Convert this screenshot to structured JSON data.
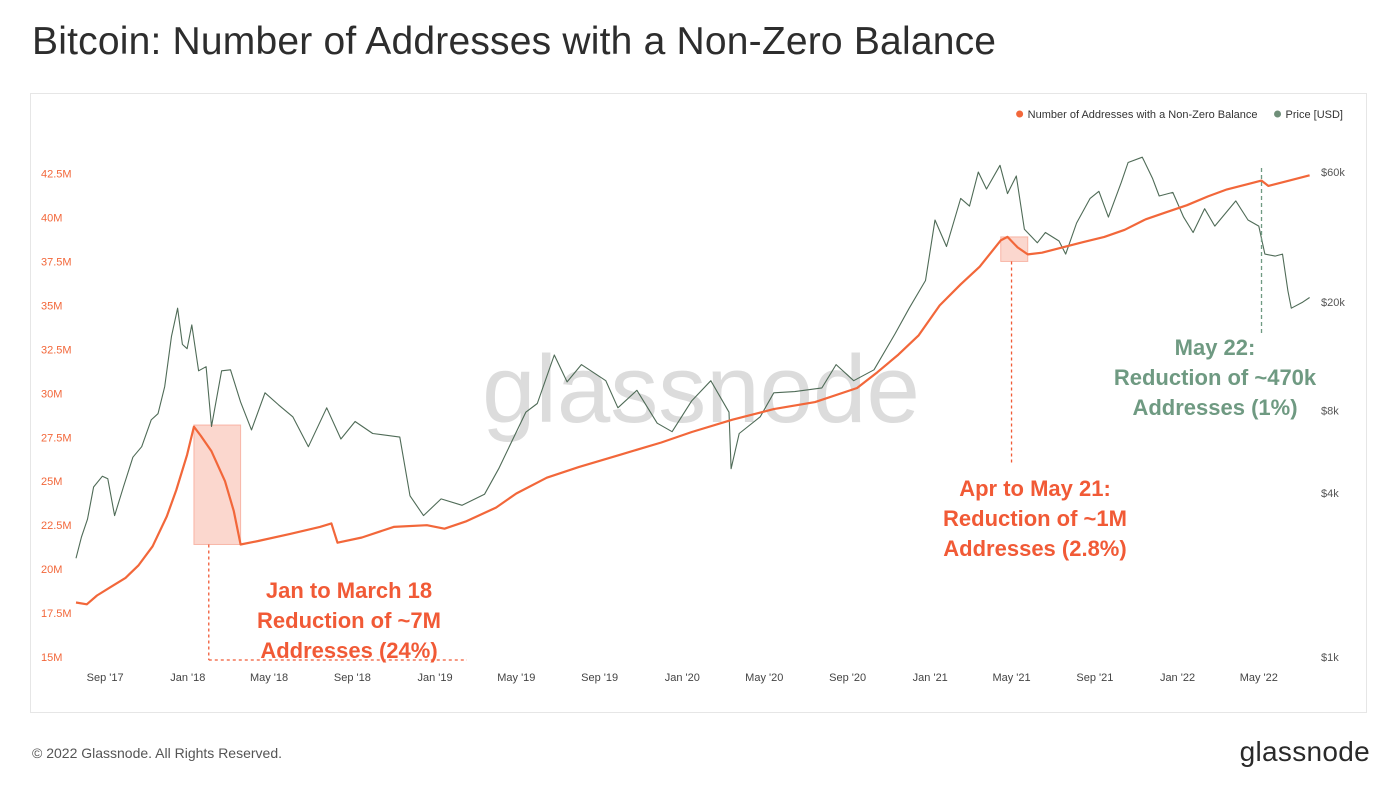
{
  "title": "Bitcoin: Number of Addresses with a Non-Zero Balance",
  "footer": {
    "copyright": "© 2022 Glassnode. All Rights Reserved.",
    "logo_text": "glassnode"
  },
  "watermark": "glassnode",
  "colors": {
    "addresses": "#f2673a",
    "price": "#4f6b57",
    "annotation_red": "#f15a36",
    "annotation_green": "#6f9a82",
    "highlight_fill": "#f9c9bd",
    "left_axis_text": "#f2673a",
    "right_axis_text": "#555555",
    "watermark": "#dcdcdc"
  },
  "chart_data": {
    "type": "line",
    "legend": {
      "placement": "top-right",
      "items": [
        {
          "label": "Number of Addresses with a Non-Zero Balance",
          "color": "#f2673a"
        },
        {
          "label": "Price [USD]",
          "color": "#6f8f79"
        }
      ]
    },
    "x_ticks": [
      "Sep '17",
      "Jan '18",
      "May '18",
      "Sep '18",
      "Jan '19",
      "May '19",
      "Sep '19",
      "Jan '20",
      "May '20",
      "Sep '20",
      "Jan '21",
      "May '21",
      "Sep '21",
      "Jan '22",
      "May '22"
    ],
    "x_range": [
      "2017-07-20",
      "2022-07-20"
    ],
    "y_left": {
      "ticks": [
        "15M",
        "17.5M",
        "20M",
        "22.5M",
        "25M",
        "27.5M",
        "30M",
        "32.5M",
        "35M",
        "37.5M",
        "40M",
        "42.5M"
      ],
      "range": [
        15,
        43.5
      ],
      "unit": "millions"
    },
    "y_right": {
      "ticks": [
        "$1k",
        "$4k",
        "$8k",
        "$20k",
        "$60k"
      ],
      "tick_values": [
        1000,
        4000,
        8000,
        20000,
        60000
      ],
      "scale": "log"
    },
    "series": [
      {
        "name": "Number of Addresses with a Non-Zero Balance",
        "axis": "left",
        "points": [
          [
            "2017-07-20",
            18.1
          ],
          [
            "2017-08-05",
            18.0
          ],
          [
            "2017-08-20",
            18.5
          ],
          [
            "2017-09-10",
            19.0
          ],
          [
            "2017-10-01",
            19.5
          ],
          [
            "2017-10-20",
            20.2
          ],
          [
            "2017-11-10",
            21.3
          ],
          [
            "2017-12-01",
            23.0
          ],
          [
            "2017-12-15",
            24.5
          ],
          [
            "2017-12-31",
            26.5
          ],
          [
            "2018-01-10",
            28.1
          ],
          [
            "2018-01-20",
            27.6
          ],
          [
            "2018-02-05",
            26.7
          ],
          [
            "2018-02-25",
            25.0
          ],
          [
            "2018-03-10",
            23.3
          ],
          [
            "2018-03-20",
            21.4
          ],
          [
            "2018-04-15",
            21.6
          ],
          [
            "2018-06-01",
            22.0
          ],
          [
            "2018-07-15",
            22.4
          ],
          [
            "2018-08-01",
            22.6
          ],
          [
            "2018-08-10",
            21.5
          ],
          [
            "2018-09-15",
            21.8
          ],
          [
            "2018-11-01",
            22.4
          ],
          [
            "2018-12-20",
            22.5
          ],
          [
            "2019-01-15",
            22.3
          ],
          [
            "2019-02-15",
            22.7
          ],
          [
            "2019-04-01",
            23.5
          ],
          [
            "2019-05-01",
            24.3
          ],
          [
            "2019-06-15",
            25.2
          ],
          [
            "2019-08-01",
            25.8
          ],
          [
            "2019-10-01",
            26.5
          ],
          [
            "2019-12-01",
            27.2
          ],
          [
            "2020-01-15",
            27.8
          ],
          [
            "2020-03-15",
            28.5
          ],
          [
            "2020-05-15",
            29.1
          ],
          [
            "2020-07-15",
            29.5
          ],
          [
            "2020-09-15",
            30.3
          ],
          [
            "2020-10-15",
            31.2
          ],
          [
            "2020-11-15",
            32.2
          ],
          [
            "2020-12-15",
            33.3
          ],
          [
            "2021-01-15",
            35.0
          ],
          [
            "2021-02-15",
            36.2
          ],
          [
            "2021-03-15",
            37.2
          ],
          [
            "2021-04-15",
            38.7
          ],
          [
            "2021-04-25",
            38.9
          ],
          [
            "2021-05-10",
            38.3
          ],
          [
            "2021-05-25",
            37.9
          ],
          [
            "2021-06-15",
            38.0
          ],
          [
            "2021-07-15",
            38.3
          ],
          [
            "2021-08-15",
            38.6
          ],
          [
            "2021-09-15",
            38.9
          ],
          [
            "2021-10-15",
            39.3
          ],
          [
            "2021-11-15",
            39.9
          ],
          [
            "2021-12-15",
            40.3
          ],
          [
            "2022-01-15",
            40.7
          ],
          [
            "2022-02-15",
            41.2
          ],
          [
            "2022-03-15",
            41.6
          ],
          [
            "2022-04-15",
            41.9
          ],
          [
            "2022-05-05",
            42.1
          ],
          [
            "2022-05-15",
            41.8
          ],
          [
            "2022-06-15",
            42.1
          ],
          [
            "2022-07-15",
            42.4
          ]
        ]
      },
      {
        "name": "Price [USD]",
        "axis": "right",
        "points": [
          [
            "2017-07-20",
            2300
          ],
          [
            "2017-07-28",
            2750
          ],
          [
            "2017-08-06",
            3200
          ],
          [
            "2017-08-15",
            4200
          ],
          [
            "2017-08-28",
            4600
          ],
          [
            "2017-09-05",
            4500
          ],
          [
            "2017-09-15",
            3300
          ],
          [
            "2017-09-28",
            4200
          ],
          [
            "2017-10-12",
            5400
          ],
          [
            "2017-10-25",
            5900
          ],
          [
            "2017-11-08",
            7400
          ],
          [
            "2017-11-18",
            7800
          ],
          [
            "2017-11-28",
            9800
          ],
          [
            "2017-12-08",
            15000
          ],
          [
            "2017-12-17",
            19000
          ],
          [
            "2017-12-24",
            14000
          ],
          [
            "2017-12-31",
            13500
          ],
          [
            "2018-01-07",
            16500
          ],
          [
            "2018-01-17",
            11200
          ],
          [
            "2018-01-28",
            11600
          ],
          [
            "2018-02-05",
            7000
          ],
          [
            "2018-02-20",
            11200
          ],
          [
            "2018-03-05",
            11300
          ],
          [
            "2018-03-20",
            8600
          ],
          [
            "2018-04-05",
            6800
          ],
          [
            "2018-04-25",
            9300
          ],
          [
            "2018-05-15",
            8400
          ],
          [
            "2018-06-05",
            7600
          ],
          [
            "2018-06-28",
            5900
          ],
          [
            "2018-07-25",
            8200
          ],
          [
            "2018-08-15",
            6300
          ],
          [
            "2018-09-05",
            7300
          ],
          [
            "2018-10-01",
            6600
          ],
          [
            "2018-11-10",
            6400
          ],
          [
            "2018-11-25",
            3900
          ],
          [
            "2018-12-15",
            3300
          ],
          [
            "2019-01-10",
            3800
          ],
          [
            "2019-02-10",
            3600
          ],
          [
            "2019-03-15",
            3950
          ],
          [
            "2019-04-05",
            4900
          ],
          [
            "2019-05-15",
            7900
          ],
          [
            "2019-06-01",
            8500
          ],
          [
            "2019-06-26",
            12800
          ],
          [
            "2019-07-15",
            10200
          ],
          [
            "2019-08-05",
            11800
          ],
          [
            "2019-09-10",
            10300
          ],
          [
            "2019-09-28",
            8200
          ],
          [
            "2019-10-26",
            9500
          ],
          [
            "2019-11-25",
            7200
          ],
          [
            "2019-12-17",
            6700
          ],
          [
            "2020-01-15",
            8700
          ],
          [
            "2020-02-12",
            10300
          ],
          [
            "2020-03-10",
            7900
          ],
          [
            "2020-03-13",
            4900
          ],
          [
            "2020-03-25",
            6600
          ],
          [
            "2020-04-25",
            7600
          ],
          [
            "2020-05-15",
            9300
          ],
          [
            "2020-06-15",
            9400
          ],
          [
            "2020-07-25",
            9700
          ],
          [
            "2020-08-15",
            11800
          ],
          [
            "2020-09-10",
            10300
          ],
          [
            "2020-10-10",
            11300
          ],
          [
            "2020-11-10",
            15300
          ],
          [
            "2020-12-01",
            19000
          ],
          [
            "2020-12-25",
            24000
          ],
          [
            "2021-01-08",
            40000
          ],
          [
            "2021-01-25",
            32000
          ],
          [
            "2021-02-15",
            48000
          ],
          [
            "2021-02-28",
            45000
          ],
          [
            "2021-03-13",
            60000
          ],
          [
            "2021-03-25",
            52000
          ],
          [
            "2021-04-14",
            63500
          ],
          [
            "2021-04-25",
            50000
          ],
          [
            "2021-05-08",
            58000
          ],
          [
            "2021-05-20",
            37000
          ],
          [
            "2021-06-08",
            33000
          ],
          [
            "2021-06-20",
            36000
          ],
          [
            "2021-07-10",
            33500
          ],
          [
            "2021-07-20",
            30000
          ],
          [
            "2021-08-05",
            39000
          ],
          [
            "2021-08-25",
            48000
          ],
          [
            "2021-09-07",
            51000
          ],
          [
            "2021-09-21",
            41000
          ],
          [
            "2021-10-10",
            55000
          ],
          [
            "2021-10-20",
            65000
          ],
          [
            "2021-11-10",
            68000
          ],
          [
            "2021-11-25",
            57000
          ],
          [
            "2021-12-05",
            49000
          ],
          [
            "2021-12-25",
            50500
          ],
          [
            "2022-01-10",
            41000
          ],
          [
            "2022-01-24",
            36000
          ],
          [
            "2022-02-10",
            44000
          ],
          [
            "2022-02-25",
            38000
          ],
          [
            "2022-03-28",
            47000
          ],
          [
            "2022-04-15",
            40000
          ],
          [
            "2022-05-01",
            38000
          ],
          [
            "2022-05-10",
            30000
          ],
          [
            "2022-05-25",
            29500
          ],
          [
            "2022-06-05",
            30000
          ],
          [
            "2022-06-13",
            22000
          ],
          [
            "2022-06-18",
            19000
          ],
          [
            "2022-07-05",
            20000
          ],
          [
            "2022-07-15",
            20800
          ]
        ]
      }
    ],
    "annotations": [
      {
        "lines": [
          "Jan to March 18",
          "Reduction of ~7M",
          "Addresses (24%)"
        ],
        "color": "#f15a36",
        "range": [
          "2018-01-10",
          "2018-03-20"
        ],
        "y_range": [
          21.4,
          28.2
        ]
      },
      {
        "lines": [
          "Apr to May 21:",
          "Reduction of ~1M",
          "Addresses (2.8%)"
        ],
        "color": "#f15a36",
        "range": [
          "2021-04-15",
          "2021-05-25"
        ],
        "y_range": [
          37.5,
          38.9
        ]
      },
      {
        "lines": [
          "May 22:",
          "Reduction of ~470k",
          "Addresses (1%)"
        ],
        "color": "#6f9a82",
        "date": "2022-05-05"
      }
    ]
  }
}
